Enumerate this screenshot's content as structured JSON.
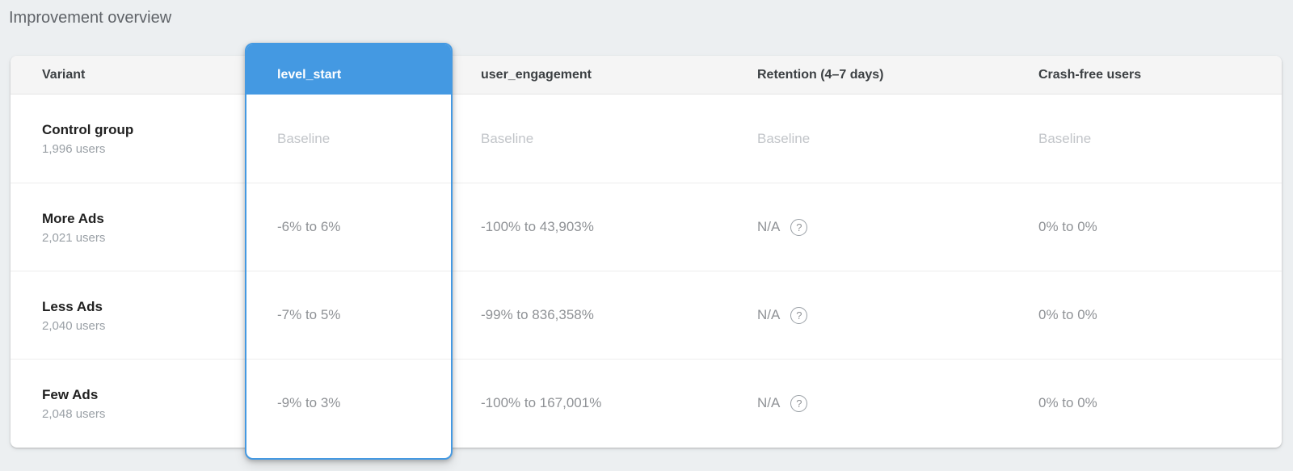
{
  "page": {
    "title": "Improvement overview"
  },
  "colors": {
    "accent_blue": "#4499e2",
    "page_background": "#eceff1",
    "header_background": "#f5f5f5",
    "value_text": "#8f9296",
    "baseline_text": "#c2c5c9"
  },
  "icons": {
    "help": "?"
  },
  "table": {
    "columns": [
      {
        "id": "variant",
        "label": "Variant",
        "selected": false
      },
      {
        "id": "level_start",
        "label": "level_start",
        "selected": true
      },
      {
        "id": "user_engagement",
        "label": "user_engagement",
        "selected": false
      },
      {
        "id": "retention",
        "label": "Retention (4–7 days)",
        "selected": false
      },
      {
        "id": "crash_free",
        "label": "Crash-free users",
        "selected": false
      }
    ],
    "rows": [
      {
        "variant": "Control group",
        "users": "1,996 users",
        "level_start": "Baseline",
        "user_engagement": "Baseline",
        "retention": "Baseline",
        "retention_help": false,
        "crash_free": "Baseline"
      },
      {
        "variant": "More Ads",
        "users": "2,021 users",
        "level_start": "-6% to 6%",
        "user_engagement": "-100% to 43,903%",
        "retention": "N/A",
        "retention_help": true,
        "crash_free": "0% to 0%"
      },
      {
        "variant": "Less Ads",
        "users": "2,040 users",
        "level_start": "-7% to 5%",
        "user_engagement": "-99% to 836,358%",
        "retention": "N/A",
        "retention_help": true,
        "crash_free": "0% to 0%"
      },
      {
        "variant": "Few Ads",
        "users": "2,048 users",
        "level_start": "-9% to 3%",
        "user_engagement": "-100% to 167,001%",
        "retention": "N/A",
        "retention_help": true,
        "crash_free": "0% to 0%"
      }
    ]
  }
}
